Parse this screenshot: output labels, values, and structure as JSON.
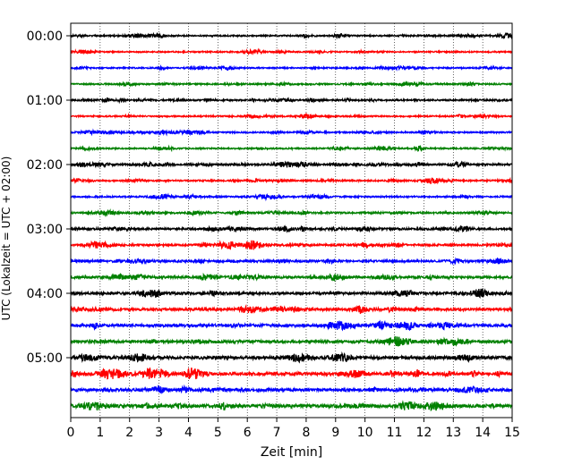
{
  "chart_data": {
    "type": "line",
    "title": "",
    "xlabel": "Zeit  [min]",
    "ylabel": "UTC (Lokalzeit = UTC + 02:00)",
    "xlim": [
      0,
      15
    ],
    "x_ticks": [
      0,
      1,
      2,
      3,
      4,
      5,
      6,
      7,
      8,
      9,
      10,
      11,
      12,
      13,
      14,
      15
    ],
    "x_tick_labels": [
      "0",
      "1",
      "2",
      "3",
      "4",
      "5",
      "6",
      "7",
      "8",
      "9",
      "10",
      "11",
      "12",
      "13",
      "14",
      "15"
    ],
    "y_tick_labels": [
      "00:00",
      "01:00",
      "02:00",
      "03:00",
      "04:00",
      "05:00"
    ],
    "minutes_per_trace": 15,
    "grid": "vertical dotted",
    "trace_colors": [
      "#000000",
      "#ff0000",
      "#0000ff",
      "#008000"
    ],
    "traces": [
      {
        "start": "00:00",
        "color": "#000000",
        "level": 0.35
      },
      {
        "start": "00:15",
        "color": "#ff0000",
        "level": 0.32
      },
      {
        "start": "00:30",
        "color": "#0000ff",
        "level": 0.32
      },
      {
        "start": "00:45",
        "color": "#008000",
        "level": 0.36
      },
      {
        "start": "01:00",
        "color": "#000000",
        "level": 0.38
      },
      {
        "start": "01:15",
        "color": "#ff0000",
        "level": 0.34
      },
      {
        "start": "01:30",
        "color": "#0000ff",
        "level": 0.34
      },
      {
        "start": "01:45",
        "color": "#008000",
        "level": 0.33
      },
      {
        "start": "02:00",
        "color": "#000000",
        "level": 0.45
      },
      {
        "start": "02:15",
        "color": "#ff0000",
        "level": 0.36
      },
      {
        "start": "02:30",
        "color": "#0000ff",
        "level": 0.36
      },
      {
        "start": "02:45",
        "color": "#008000",
        "level": 0.42
      },
      {
        "start": "03:00",
        "color": "#000000",
        "level": 0.48
      },
      {
        "start": "03:15",
        "color": "#ff0000",
        "level": 0.46
      },
      {
        "start": "03:30",
        "color": "#0000ff",
        "level": 0.52
      },
      {
        "start": "03:45",
        "color": "#008000",
        "level": 0.55
      },
      {
        "start": "04:00",
        "color": "#000000",
        "level": 0.58
      },
      {
        "start": "04:15",
        "color": "#ff0000",
        "level": 0.62
      },
      {
        "start": "04:30",
        "color": "#0000ff",
        "level": 0.66
      },
      {
        "start": "04:45",
        "color": "#008000",
        "level": 0.7
      },
      {
        "start": "05:00",
        "color": "#000000",
        "level": 0.78
      },
      {
        "start": "05:15",
        "color": "#ff0000",
        "level": 0.74
      },
      {
        "start": "05:30",
        "color": "#0000ff",
        "level": 0.72
      },
      {
        "start": "05:45",
        "color": "#008000",
        "level": 0.82
      }
    ]
  }
}
